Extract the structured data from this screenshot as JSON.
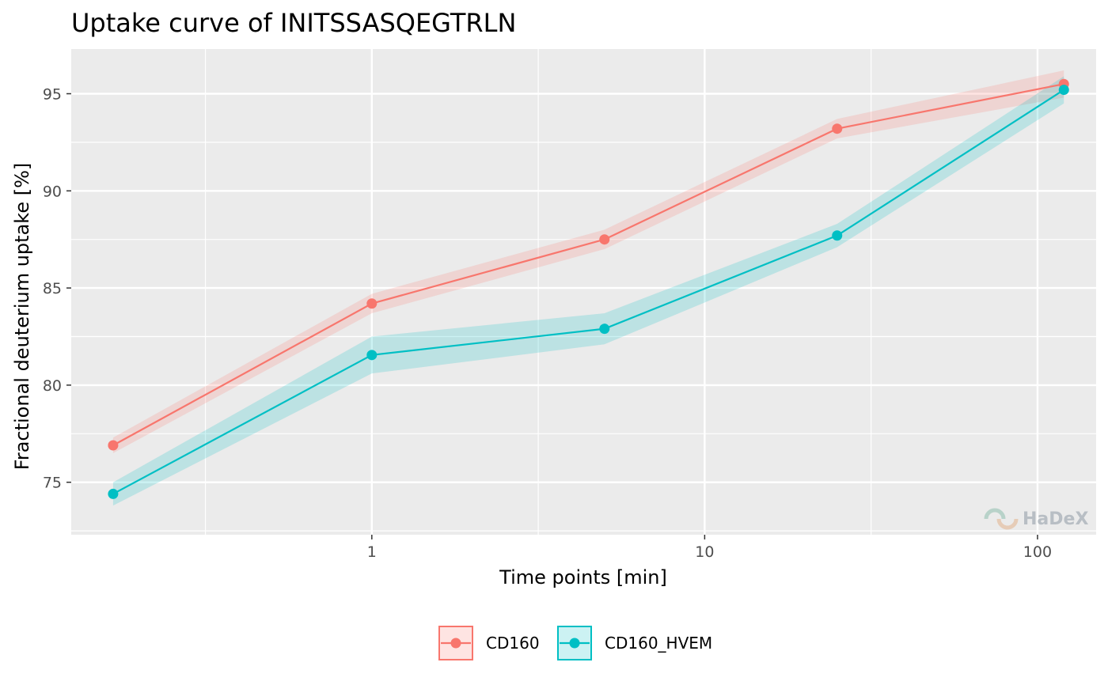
{
  "chart_data": {
    "type": "line",
    "title": "Uptake curve of INITSSASQEGTRLN",
    "xlabel": "Time points [min]",
    "ylabel": "Fractional deuterium uptake [%]",
    "x_scale": "log10",
    "xlim": [
      0.125,
      150
    ],
    "ylim": [
      72.3,
      97.3
    ],
    "x_ticks": [
      1,
      10,
      100
    ],
    "x_tick_labels": [
      "1",
      "10",
      "100"
    ],
    "y_ticks": [
      75,
      80,
      85,
      90,
      95
    ],
    "y_tick_labels": [
      "75",
      "80",
      "85",
      "90",
      "95"
    ],
    "grid": true,
    "legend_position": "bottom",
    "x": [
      0.167,
      1,
      5,
      25,
      120
    ],
    "series": [
      {
        "name": "CD160",
        "color": "#F8766D",
        "values": [
          76.9,
          84.2,
          87.5,
          93.2,
          95.5
        ],
        "lower": [
          76.5,
          83.7,
          87.0,
          92.7,
          94.8
        ],
        "upper": [
          77.3,
          84.7,
          88.0,
          93.7,
          96.2
        ]
      },
      {
        "name": "CD160_HVEM",
        "color": "#00BFC4",
        "values": [
          74.4,
          81.55,
          82.9,
          87.7,
          95.2
        ],
        "lower": [
          73.8,
          80.6,
          82.1,
          87.1,
          94.5
        ],
        "upper": [
          75.0,
          82.5,
          83.7,
          88.3,
          95.9
        ]
      }
    ]
  },
  "watermark": {
    "text": "HaDeX"
  }
}
